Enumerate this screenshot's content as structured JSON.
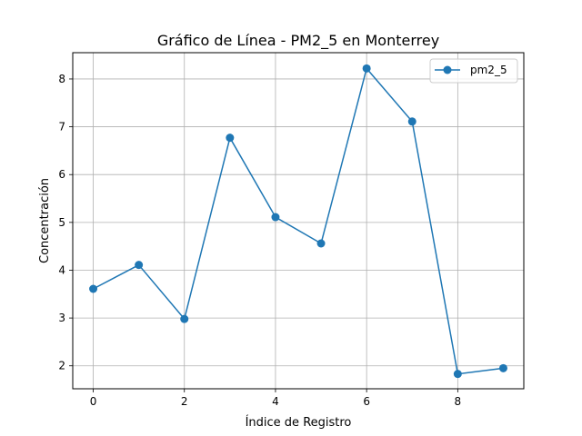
{
  "chart_data": {
    "type": "line",
    "title": "Gráfico de Línea - PM2_5 en Monterrey",
    "xlabel": "Índice de Registro",
    "ylabel": "Concentración",
    "xlim": [
      -0.45,
      9.45
    ],
    "ylim": [
      1.52,
      8.55
    ],
    "xticks": [
      "0",
      "2",
      "4",
      "6",
      "8"
    ],
    "yticks": [
      "2",
      "3",
      "4",
      "5",
      "6",
      "7",
      "8"
    ],
    "grid": true,
    "legend_position": "top-right",
    "series": [
      {
        "name": "pm2_5",
        "color": "#1f77b4",
        "marker": "circle",
        "x": [
          0,
          1,
          2,
          3,
          4,
          5,
          6,
          7,
          8,
          9
        ],
        "values": [
          3.61,
          4.11,
          2.98,
          6.77,
          5.11,
          4.56,
          8.22,
          7.11,
          1.83,
          1.95
        ]
      }
    ]
  }
}
